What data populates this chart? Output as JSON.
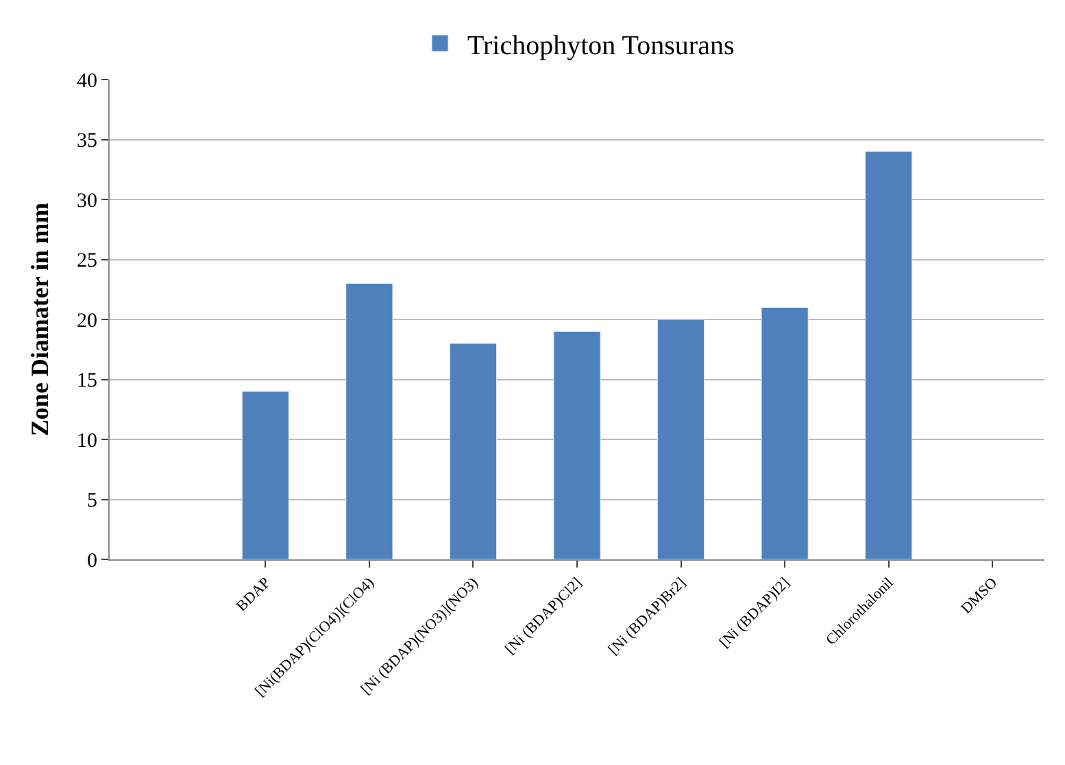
{
  "chart_data": {
    "type": "bar",
    "ylabel": "Zone Diamater in mm",
    "categories": [
      null,
      "BDAP",
      "[Ni(BDAP)(ClO4)](ClO4)",
      "[Ni (BDAP)(NO3)](NO3)",
      "[Ni (BDAP)Cl2]",
      "[Ni (BDAP)Br2]",
      "[Ni (BDAP)I2]",
      "Chlorothalonil",
      "DMSO"
    ],
    "series": [
      {
        "name": "Trichophyton Tonsurans",
        "color": "#4f81bd",
        "values": [
          null,
          14,
          23,
          18,
          19,
          20,
          21,
          34,
          null
        ]
      }
    ],
    "ylim": [
      0,
      40
    ],
    "yticks": [
      0,
      5,
      10,
      15,
      20,
      25,
      30,
      35,
      40
    ],
    "grid": "y",
    "legend": "top"
  }
}
